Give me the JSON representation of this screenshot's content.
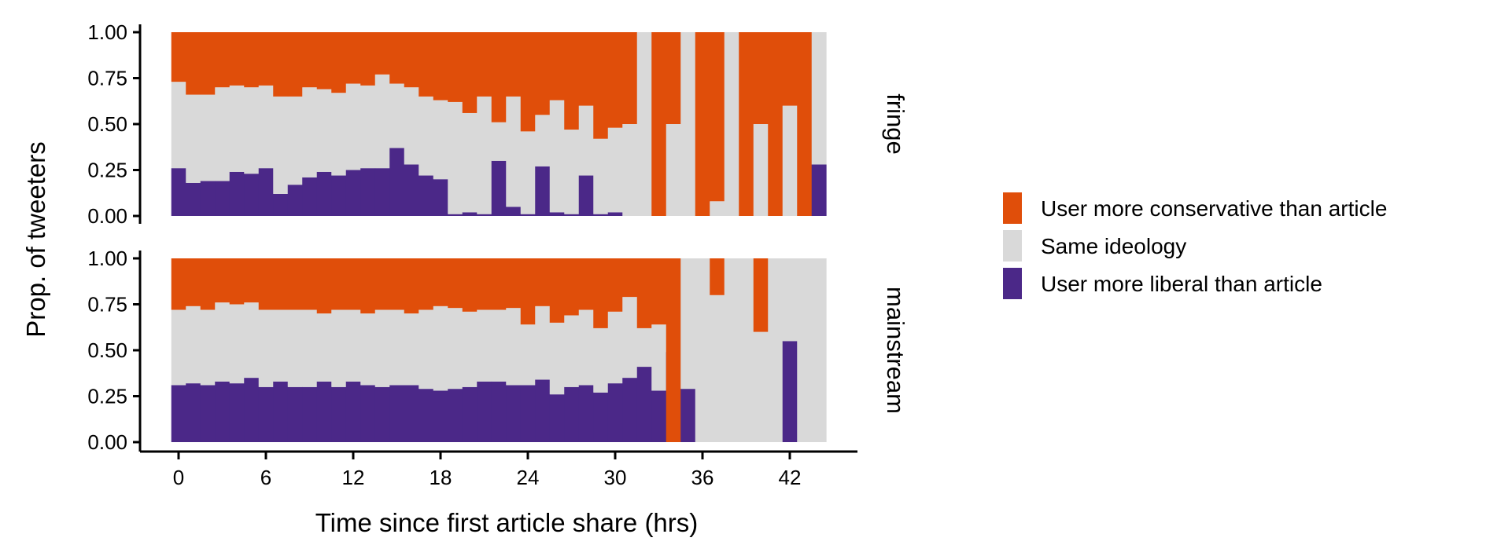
{
  "chart_data": {
    "type": "bar",
    "stacked": true,
    "ylabel": "Prop. of tweeters",
    "xlabel": "Time since first article share (hrs)",
    "x_ticks": [
      0,
      6,
      12,
      18,
      24,
      30,
      36,
      42
    ],
    "y_ticks": [
      "0.00",
      "0.25",
      "0.50",
      "0.75",
      "1.00"
    ],
    "xlim": [
      -3,
      47
    ],
    "ylim": [
      0,
      1
    ],
    "bin_width_hrs": 1,
    "legend_position": "right",
    "legend": [
      {
        "name": "User more conservative than article",
        "color": "#E04E0A"
      },
      {
        "name": "Same ideology",
        "color": "#D9D9D9"
      },
      {
        "name": "User more liberal than article",
        "color": "#4B2888"
      }
    ],
    "panels": [
      {
        "strip": "fringe",
        "x": [
          0,
          1,
          2,
          3,
          4,
          5,
          6,
          7,
          8,
          9,
          10,
          11,
          12,
          13,
          14,
          15,
          16,
          17,
          18,
          19,
          20,
          21,
          22,
          23,
          24,
          25,
          26,
          27,
          28,
          29,
          30,
          31,
          32,
          33,
          34,
          35,
          36,
          37,
          38,
          39,
          40,
          41,
          42,
          43,
          44
        ],
        "liberal": [
          0.26,
          0.18,
          0.19,
          0.19,
          0.24,
          0.23,
          0.26,
          0.12,
          0.17,
          0.21,
          0.24,
          0.22,
          0.25,
          0.26,
          0.26,
          0.37,
          0.28,
          0.22,
          0.2,
          0.01,
          0.02,
          0.01,
          0.3,
          0.05,
          0.01,
          0.27,
          0.02,
          0.01,
          0.22,
          0.01,
          0.02,
          0,
          0,
          0,
          0,
          0,
          0,
          0,
          0,
          0,
          0,
          0,
          0,
          0,
          0.28
        ],
        "conservative": [
          0.27,
          0.34,
          0.34,
          0.3,
          0.29,
          0.3,
          0.29,
          0.35,
          0.35,
          0.3,
          0.31,
          0.33,
          0.28,
          0.29,
          0.23,
          0.28,
          0.3,
          0.35,
          0.37,
          0.38,
          0.44,
          0.35,
          0.49,
          0.35,
          0.54,
          0.45,
          0.37,
          0.53,
          0.4,
          0.58,
          0.52,
          0.5,
          0,
          1,
          0.5,
          0,
          1,
          0.92,
          0,
          1,
          0.5,
          1,
          0.4,
          1,
          0
        ]
      },
      {
        "strip": "mainstream",
        "x": [
          0,
          1,
          2,
          3,
          4,
          5,
          6,
          7,
          8,
          9,
          10,
          11,
          12,
          13,
          14,
          15,
          16,
          17,
          18,
          19,
          20,
          21,
          22,
          23,
          24,
          25,
          26,
          27,
          28,
          29,
          30,
          31,
          32,
          33,
          34,
          35,
          36,
          37,
          38,
          39,
          40,
          41,
          42,
          43,
          44
        ],
        "liberal": [
          0.31,
          0.32,
          0.31,
          0.33,
          0.32,
          0.35,
          0.3,
          0.33,
          0.3,
          0.3,
          0.33,
          0.3,
          0.33,
          0.31,
          0.3,
          0.31,
          0.31,
          0.29,
          0.28,
          0.29,
          0.3,
          0.33,
          0.33,
          0.31,
          0.31,
          0.34,
          0.26,
          0.3,
          0.31,
          0.27,
          0.32,
          0.35,
          0.41,
          0.28,
          0.49,
          0.29,
          0,
          0,
          0,
          0,
          0,
          0,
          0.55,
          0,
          0
        ],
        "conservative": [
          0.28,
          0.26,
          0.28,
          0.24,
          0.25,
          0.24,
          0.28,
          0.28,
          0.28,
          0.28,
          0.3,
          0.28,
          0.28,
          0.3,
          0.28,
          0.28,
          0.3,
          0.28,
          0.26,
          0.27,
          0.29,
          0.28,
          0.28,
          0.27,
          0.36,
          0.26,
          0.35,
          0.31,
          0.28,
          0.38,
          0.29,
          0.21,
          0.38,
          0.36,
          1,
          0,
          0,
          0.2,
          0,
          0,
          0.4,
          0,
          0,
          0,
          0
        ]
      }
    ]
  }
}
